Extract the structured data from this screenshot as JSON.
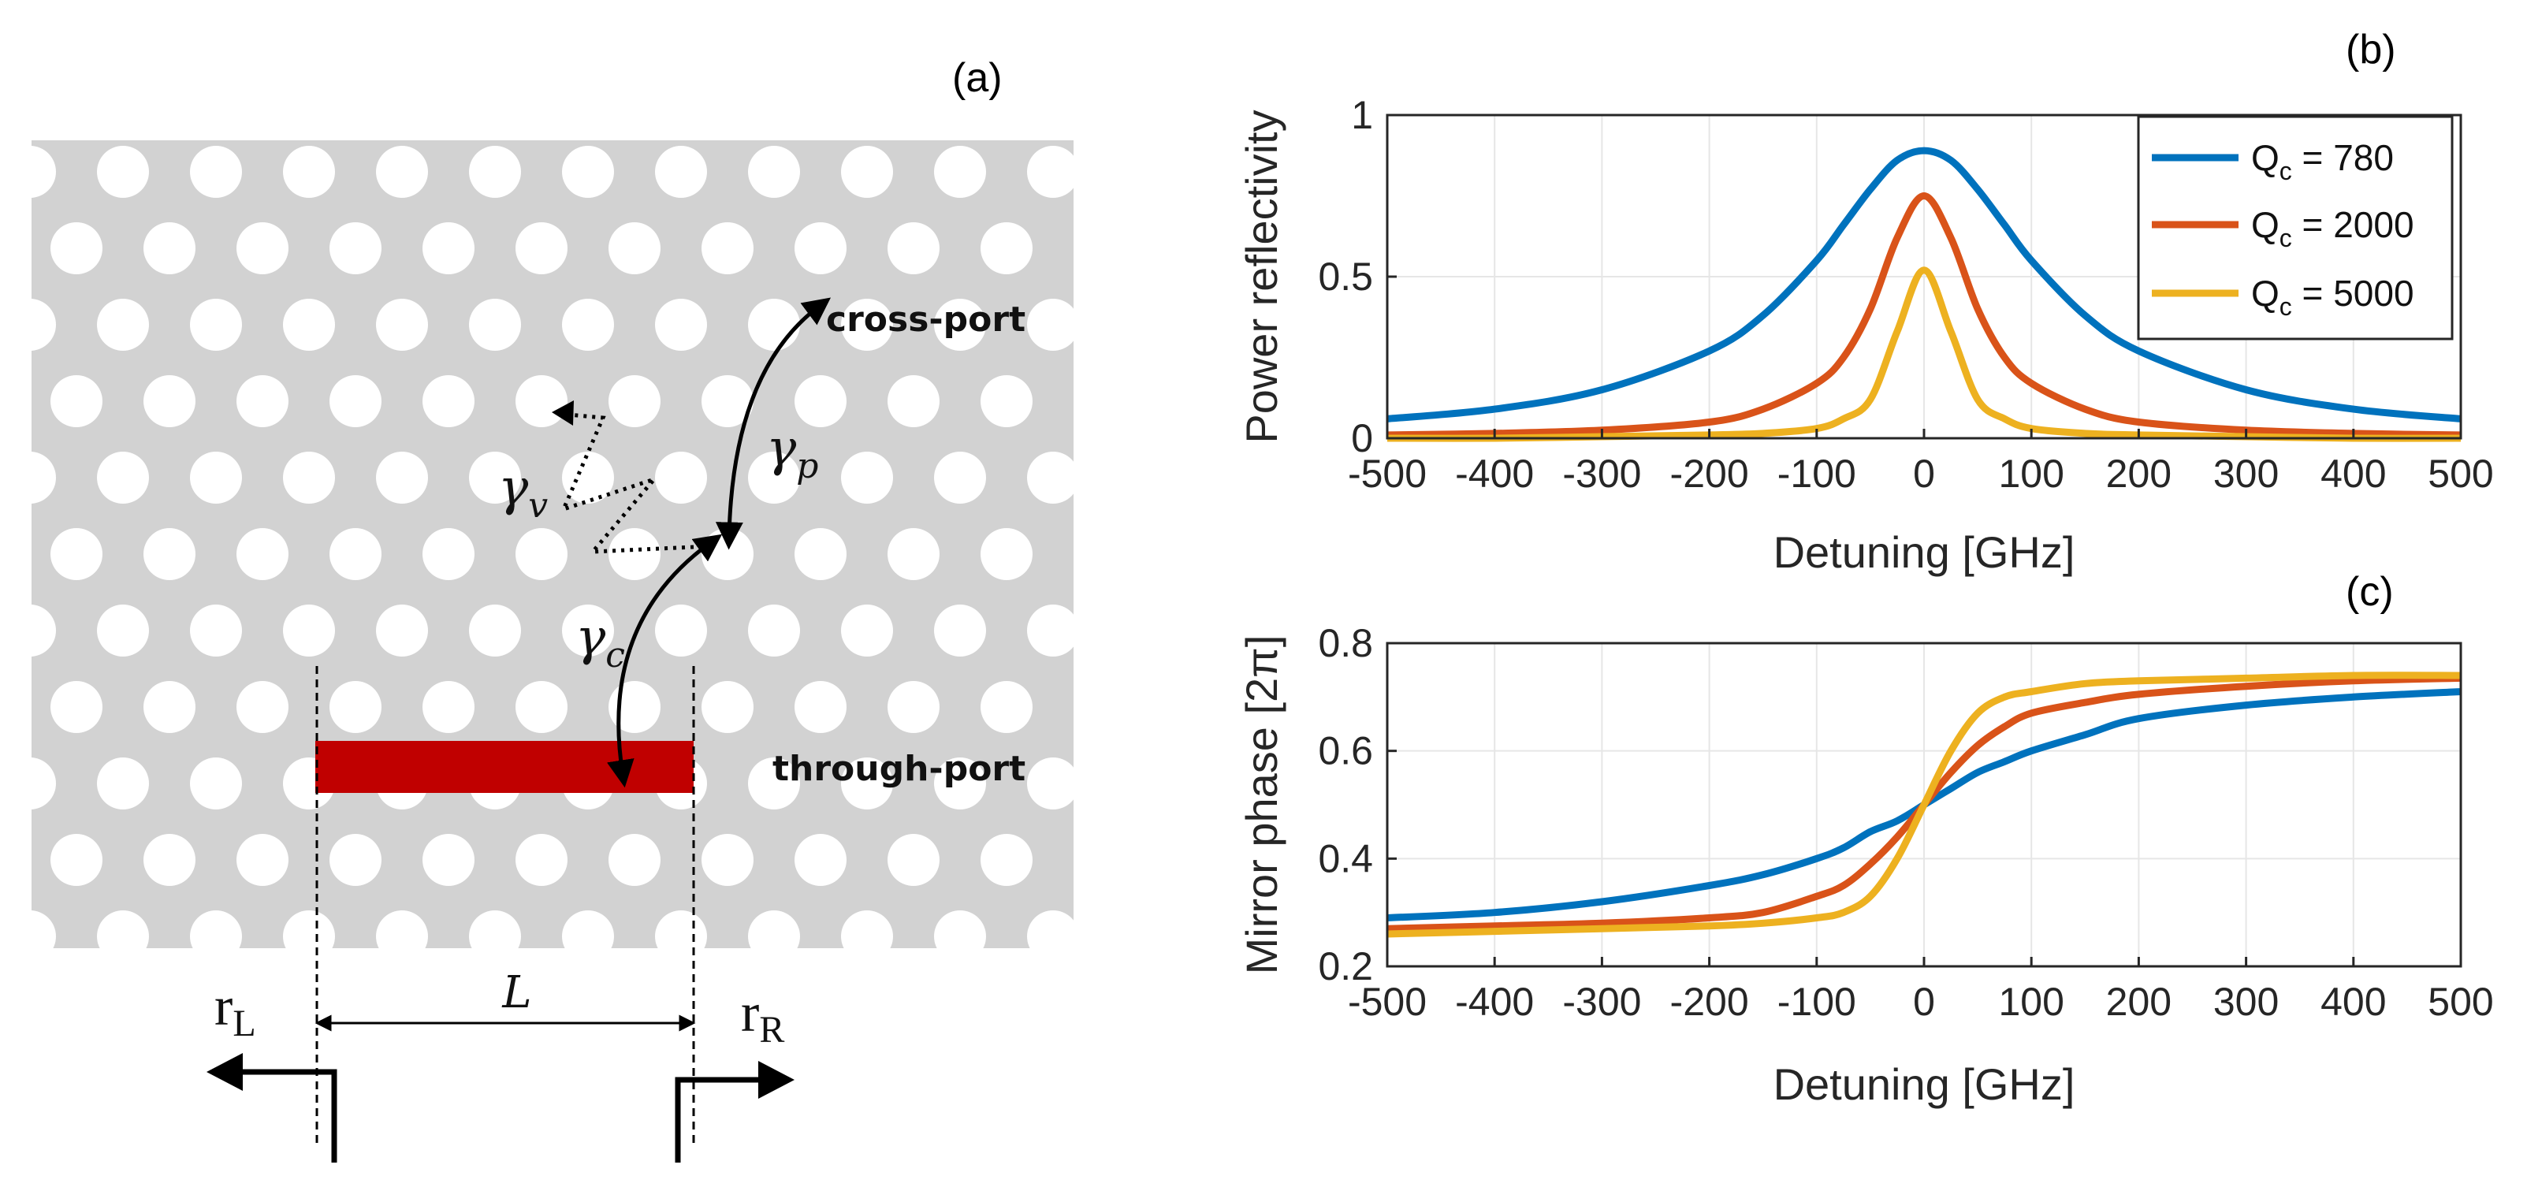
{
  "figure": {
    "panel_a": {
      "label": "(a)",
      "cross_port": "cross-port",
      "through_port": "through-port",
      "gamma_v": "γ",
      "gamma_v_sub": "v",
      "gamma_p": "γ",
      "gamma_p_sub": "p",
      "gamma_c": "γ",
      "gamma_c_sub": "c",
      "length_label": "L",
      "r_left": "r",
      "r_left_sub": "L",
      "r_right": "r",
      "r_right_sub": "R",
      "colors": {
        "background": "#d2d2d2",
        "holes": "#ffffff",
        "waveguide": "#c00000"
      }
    }
  },
  "chart_data": [
    {
      "id": "b",
      "panel_label": "(b)",
      "type": "line",
      "xlabel": "Detuning [GHz]",
      "ylabel": "Power reflectivity",
      "xlim": [
        -500,
        500
      ],
      "ylim": [
        0,
        1
      ],
      "xticks": [
        -500,
        -400,
        -300,
        -200,
        -100,
        0,
        100,
        200,
        300,
        400,
        500
      ],
      "yticks": [
        0,
        0.5,
        1
      ],
      "yticklabels": [
        "0",
        "0.5",
        "1"
      ],
      "grid": true,
      "legend_position": "top-right",
      "x": [
        -500,
        -400,
        -300,
        -200,
        -150,
        -100,
        -75,
        -50,
        -25,
        0,
        25,
        50,
        75,
        100,
        150,
        200,
        300,
        400,
        500
      ],
      "series": [
        {
          "name": "Q_c = 780",
          "legend_main": "Q",
          "legend_sub": "c",
          "legend_value": " = 780",
          "color": "#0072bd",
          "values": [
            0.06,
            0.09,
            0.15,
            0.27,
            0.38,
            0.55,
            0.66,
            0.77,
            0.86,
            0.89,
            0.86,
            0.77,
            0.66,
            0.55,
            0.38,
            0.27,
            0.15,
            0.09,
            0.06
          ]
        },
        {
          "name": "Q_c = 2000",
          "legend_main": "Q",
          "legend_sub": "c",
          "legend_value": " = 2000",
          "color": "#d95319",
          "values": [
            0.01,
            0.015,
            0.025,
            0.05,
            0.09,
            0.17,
            0.25,
            0.4,
            0.62,
            0.75,
            0.62,
            0.4,
            0.25,
            0.17,
            0.09,
            0.05,
            0.025,
            0.015,
            0.01
          ]
        },
        {
          "name": "Q_c = 5000",
          "legend_main": "Q",
          "legend_sub": "c",
          "legend_value": " = 5000",
          "color": "#edb120",
          "values": [
            0.0,
            0.0,
            0.005,
            0.01,
            0.015,
            0.03,
            0.06,
            0.12,
            0.33,
            0.52,
            0.33,
            0.12,
            0.06,
            0.03,
            0.015,
            0.01,
            0.005,
            0.0,
            0.0
          ]
        }
      ]
    },
    {
      "id": "c",
      "panel_label": "(c)",
      "type": "line",
      "xlabel": "Detuning [GHz]",
      "ylabel": "Mirror phase [2π]",
      "xlim": [
        -500,
        500
      ],
      "ylim": [
        0.2,
        0.8
      ],
      "xticks": [
        -500,
        -400,
        -300,
        -200,
        -100,
        0,
        100,
        200,
        300,
        400,
        500
      ],
      "yticks": [
        0.2,
        0.4,
        0.6,
        0.8
      ],
      "yticklabels": [
        "0.2",
        "0.4",
        "0.6",
        "0.8"
      ],
      "grid": true,
      "x": [
        -500,
        -400,
        -300,
        -200,
        -150,
        -100,
        -75,
        -50,
        -25,
        0,
        25,
        50,
        75,
        100,
        150,
        200,
        300,
        400,
        500
      ],
      "series": [
        {
          "name": "Q_c = 780",
          "color": "#0072bd",
          "values": [
            0.29,
            0.3,
            0.32,
            0.35,
            0.37,
            0.4,
            0.42,
            0.45,
            0.47,
            0.5,
            0.53,
            0.56,
            0.58,
            0.6,
            0.63,
            0.66,
            0.685,
            0.7,
            0.71
          ]
        },
        {
          "name": "Q_c = 2000",
          "color": "#d95319",
          "values": [
            0.27,
            0.275,
            0.28,
            0.29,
            0.3,
            0.33,
            0.35,
            0.39,
            0.44,
            0.5,
            0.56,
            0.61,
            0.645,
            0.67,
            0.69,
            0.705,
            0.72,
            0.73,
            0.735
          ]
        },
        {
          "name": "Q_c = 5000",
          "color": "#edb120",
          "values": [
            0.26,
            0.265,
            0.27,
            0.275,
            0.28,
            0.29,
            0.3,
            0.33,
            0.4,
            0.5,
            0.6,
            0.67,
            0.7,
            0.71,
            0.725,
            0.73,
            0.735,
            0.74,
            0.74
          ]
        }
      ]
    }
  ]
}
